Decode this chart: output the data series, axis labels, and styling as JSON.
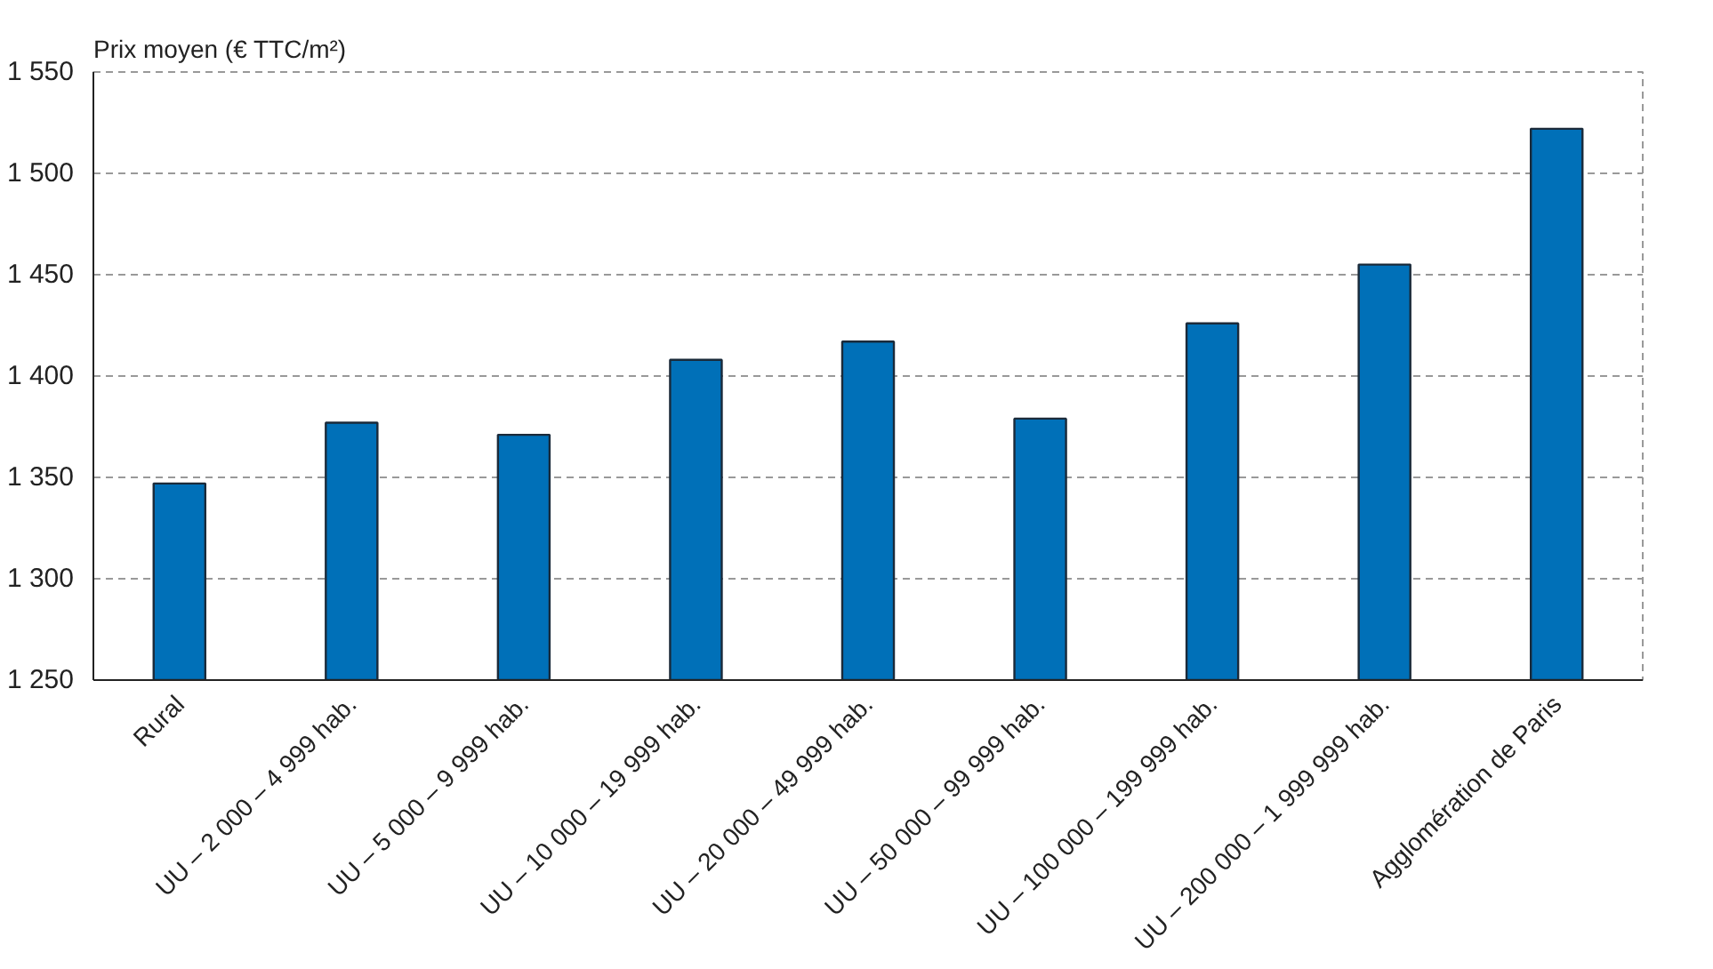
{
  "chart_data": {
    "type": "bar",
    "ylabel": "Prix moyen (€ TTC/m²)",
    "categories": [
      "Rural",
      "UU – 2 000 – 4 999 hab.",
      "UU – 5 000 – 9 999 hab.",
      "UU – 10 000 – 19 999 hab.",
      "UU – 20 000 – 49 999 hab.",
      "UU – 50 000 – 99 999 hab.",
      "UU – 100 000 – 199 999 hab.",
      "UU – 200 000 – 1 999 999 hab.",
      "Agglomération de Paris"
    ],
    "values": [
      1347,
      1377,
      1371,
      1408,
      1417,
      1379,
      1426,
      1455,
      1522
    ],
    "color": "#0070b8",
    "ylim": [
      1250,
      1550
    ],
    "yticks": [
      {
        "value": 1250,
        "label": "1 250"
      },
      {
        "value": 1300,
        "label": "1 300"
      },
      {
        "value": 1350,
        "label": "1 350"
      },
      {
        "value": 1400,
        "label": "1 400"
      },
      {
        "value": 1450,
        "label": "1 450"
      },
      {
        "value": 1500,
        "label": "1 500"
      },
      {
        "value": 1550,
        "label": "1 550"
      }
    ],
    "grid": "y"
  }
}
